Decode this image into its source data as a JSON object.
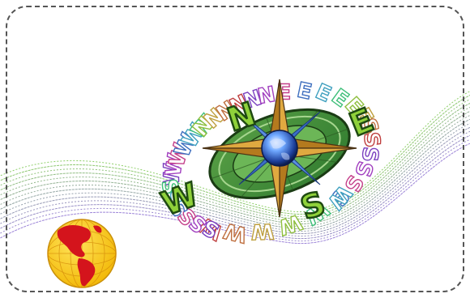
{
  "compass": {
    "letters": {
      "north": "N",
      "east": "E",
      "south": "S",
      "west": "W"
    },
    "center_icon": "globe-icon"
  },
  "decor": {
    "globe_icon": "americas-globe-icon",
    "wave_lines": 14,
    "frame_style": "dashed-rounded"
  },
  "colors": {
    "wave_start": "#7ac74f",
    "wave_end": "#8b6fd1",
    "globe_land": "#d4141c",
    "globe_ocean": "#ffd21f",
    "compass_green": "#4e9a3f",
    "compass_gold": "#d9a441",
    "compass_blue": "#3a6fc7"
  }
}
